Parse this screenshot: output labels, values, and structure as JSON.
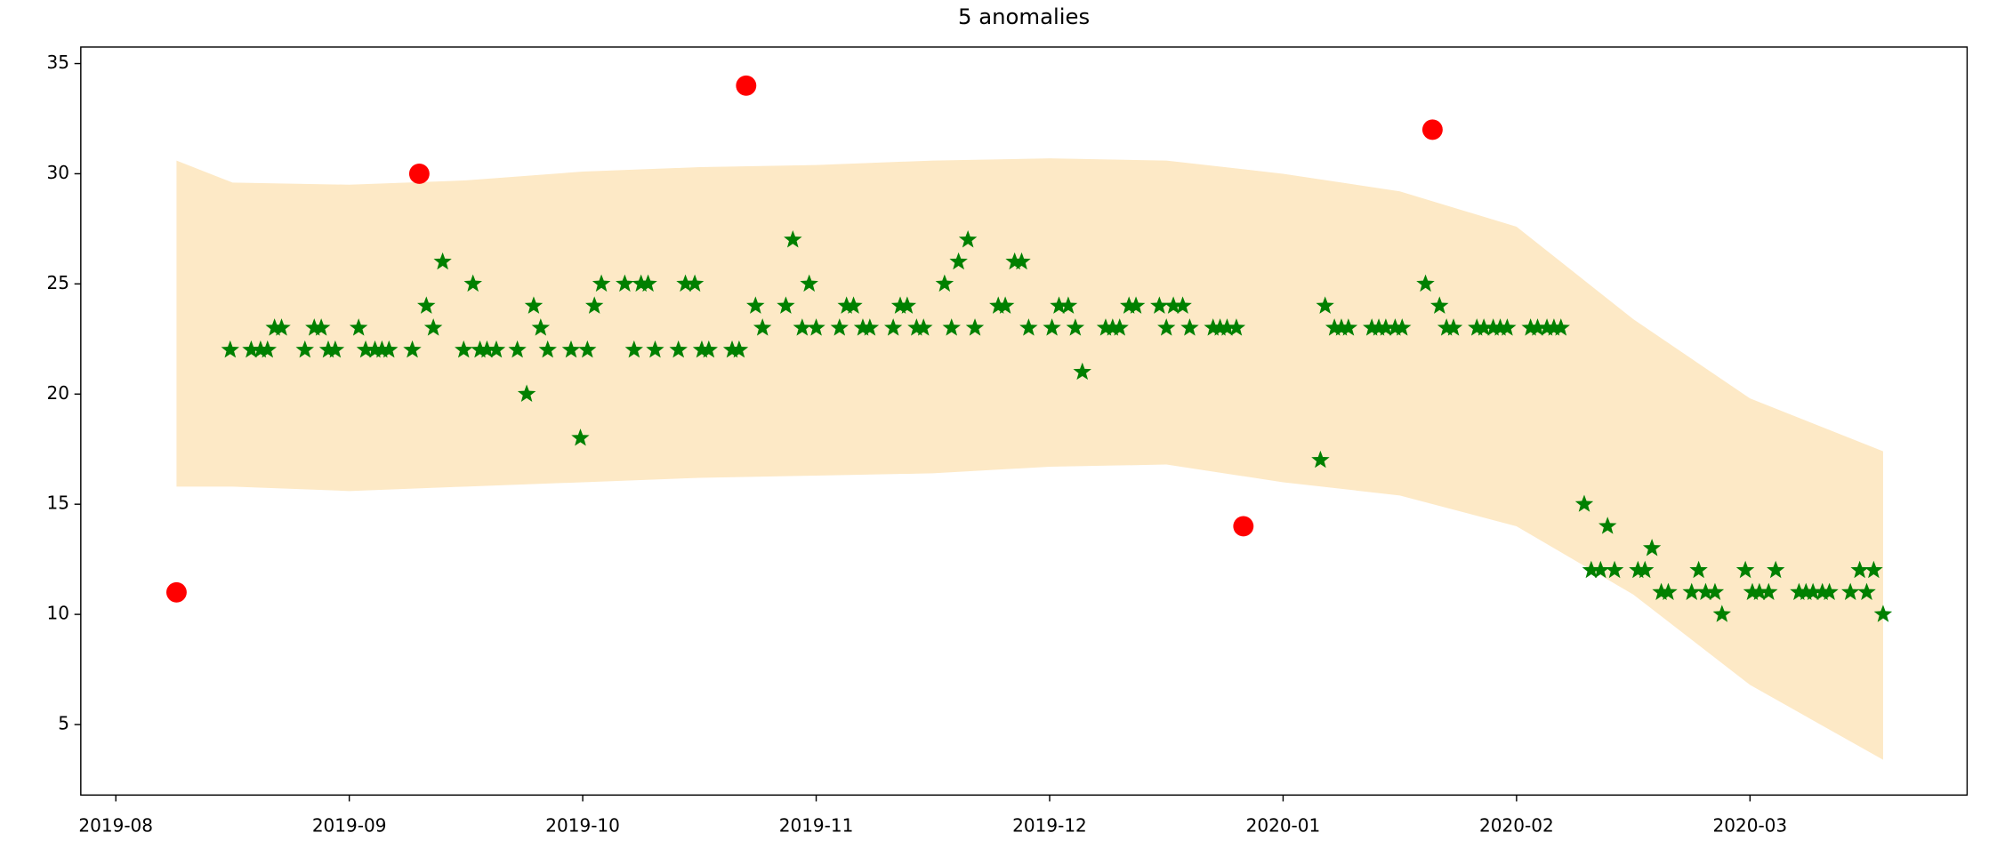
{
  "chart_data": {
    "type": "scatter",
    "title": "5 anomalies",
    "xlim": [
      -0.15,
      7.93
    ],
    "xticks": [
      {
        "value": 0,
        "label": "2019-08"
      },
      {
        "value": 1,
        "label": "2019-09"
      },
      {
        "value": 2,
        "label": "2019-10"
      },
      {
        "value": 3,
        "label": "2019-11"
      },
      {
        "value": 4,
        "label": "2019-12"
      },
      {
        "value": 5,
        "label": "2020-01"
      },
      {
        "value": 6,
        "label": "2020-02"
      },
      {
        "value": 7,
        "label": "2020-03"
      }
    ],
    "ylim": [
      1.8,
      35.75
    ],
    "yticks": [
      5,
      10,
      15,
      20,
      25,
      30,
      35
    ],
    "band": {
      "color": "#fde9c6",
      "x": [
        0.26,
        0.5,
        1.0,
        1.5,
        2.0,
        2.5,
        3.0,
        3.5,
        4.0,
        4.5,
        5.0,
        5.5,
        6.0,
        6.5,
        7.0,
        7.57
      ],
      "upper": [
        30.6,
        29.6,
        29.5,
        29.7,
        30.1,
        30.3,
        30.4,
        30.6,
        30.7,
        30.6,
        30.0,
        29.2,
        27.6,
        23.4,
        19.8,
        17.4
      ],
      "lower": [
        15.8,
        15.8,
        15.6,
        15.8,
        16.0,
        16.2,
        16.3,
        16.4,
        16.7,
        16.8,
        16.0,
        15.4,
        14.0,
        10.9,
        6.8,
        3.4
      ]
    },
    "series": [
      {
        "color": "green",
        "marker": "star",
        "x": [
          0.49,
          0.58,
          0.62,
          0.65,
          0.68,
          0.71,
          0.81,
          0.85,
          0.88,
          0.91,
          0.94,
          1.04,
          1.07,
          1.11,
          1.14,
          1.17,
          1.27,
          1.33,
          1.36,
          1.4,
          1.49,
          1.53,
          1.56,
          1.59,
          1.63,
          1.72,
          1.76,
          1.79,
          1.82,
          1.85,
          1.95,
          1.99,
          2.02,
          2.05,
          2.08,
          2.18,
          2.22,
          2.25,
          2.28,
          2.31,
          2.41,
          2.44,
          2.48,
          2.51,
          2.54,
          2.64,
          2.67,
          2.74,
          2.77,
          2.87,
          2.9,
          2.94,
          2.97,
          3.0,
          3.1,
          3.13,
          3.16,
          3.2,
          3.23,
          3.33,
          3.36,
          3.39,
          3.43,
          3.46,
          3.55,
          3.58,
          3.61,
          3.65,
          3.68,
          3.78,
          3.81,
          3.85,
          3.88,
          3.91,
          4.01,
          4.04,
          4.08,
          4.11,
          4.14,
          4.24,
          4.27,
          4.3,
          4.34,
          4.37,
          4.47,
          4.5,
          4.53,
          4.57,
          4.6,
          4.7,
          4.73,
          4.76,
          4.8,
          5.16,
          5.18,
          5.22,
          5.25,
          5.28,
          5.38,
          5.41,
          5.44,
          5.48,
          5.51,
          5.61,
          5.67,
          5.7,
          5.73,
          5.83,
          5.86,
          5.9,
          5.93,
          5.96,
          6.06,
          6.09,
          6.13,
          6.16,
          6.19,
          6.29,
          6.32,
          6.36,
          6.39,
          6.42,
          6.52,
          6.55,
          6.58,
          6.62,
          6.65,
          6.75,
          6.78,
          6.81,
          6.85,
          6.88,
          6.98,
          7.01,
          7.04,
          7.08,
          7.11,
          7.21,
          7.24,
          7.27,
          7.31,
          7.34,
          7.43,
          7.47,
          7.5,
          7.53,
          7.57
        ],
        "values": [
          22,
          22,
          22,
          22,
          23,
          23,
          22,
          23,
          23,
          22,
          22,
          23,
          22,
          22,
          22,
          22,
          22,
          24,
          23,
          26,
          22,
          25,
          22,
          22,
          22,
          22,
          20,
          24,
          23,
          22,
          22,
          18,
          22,
          24,
          25,
          25,
          22,
          25,
          25,
          22,
          22,
          25,
          25,
          22,
          22,
          22,
          22,
          24,
          23,
          24,
          27,
          23,
          25,
          23,
          23,
          24,
          24,
          23,
          23,
          23,
          24,
          24,
          23,
          23,
          25,
          23,
          26,
          27,
          23,
          24,
          24,
          26,
          26,
          23,
          23,
          24,
          24,
          23,
          21,
          23,
          23,
          23,
          24,
          24,
          24,
          23,
          24,
          24,
          23,
          23,
          23,
          23,
          23,
          17,
          24,
          23,
          23,
          23,
          23,
          23,
          23,
          23,
          23,
          25,
          24,
          23,
          23,
          23,
          23,
          23,
          23,
          23,
          23,
          23,
          23,
          23,
          23,
          15,
          12,
          12,
          14,
          12,
          12,
          12,
          13,
          11,
          11,
          11,
          12,
          11,
          11,
          10,
          12,
          11,
          11,
          11,
          12,
          11,
          11,
          11,
          11,
          11,
          11,
          12,
          11,
          12,
          10
        ]
      },
      {
        "color": "red",
        "marker": "circle",
        "x": [
          0.26,
          1.3,
          2.7,
          4.83,
          5.64
        ],
        "values": [
          11,
          30,
          34,
          14,
          32
        ]
      }
    ]
  }
}
